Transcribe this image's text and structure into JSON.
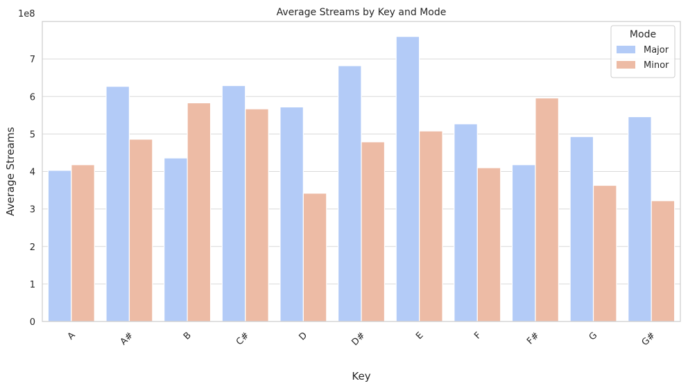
{
  "chart_data": {
    "type": "bar",
    "title": "Average Streams by Key and Mode",
    "xlabel": "Key",
    "ylabel": "Average Streams",
    "y_multiplier_label": "1e8",
    "categories": [
      "A",
      "A#",
      "B",
      "C#",
      "D",
      "D#",
      "E",
      "F",
      "F#",
      "G",
      "G#"
    ],
    "series": [
      {
        "name": "Major",
        "color": "#b3cbf7",
        "values": [
          403000000,
          627000000,
          436000000,
          629000000,
          572000000,
          682000000,
          760000000,
          527000000,
          418000000,
          493000000,
          546000000
        ]
      },
      {
        "name": "Minor",
        "color": "#edbba5",
        "values": [
          418000000,
          486000000,
          583000000,
          567000000,
          342000000,
          479000000,
          508000000,
          410000000,
          596000000,
          363000000,
          322000000
        ]
      }
    ],
    "ylim": [
      0,
      800000000
    ],
    "yticks": [
      0,
      100000000,
      200000000,
      300000000,
      400000000,
      500000000,
      600000000,
      700000000
    ],
    "ytick_labels": [
      "0",
      "1",
      "2",
      "3",
      "4",
      "5",
      "6",
      "7"
    ],
    "legend": {
      "title": "Mode",
      "position": "top-right"
    },
    "grid": true
  }
}
